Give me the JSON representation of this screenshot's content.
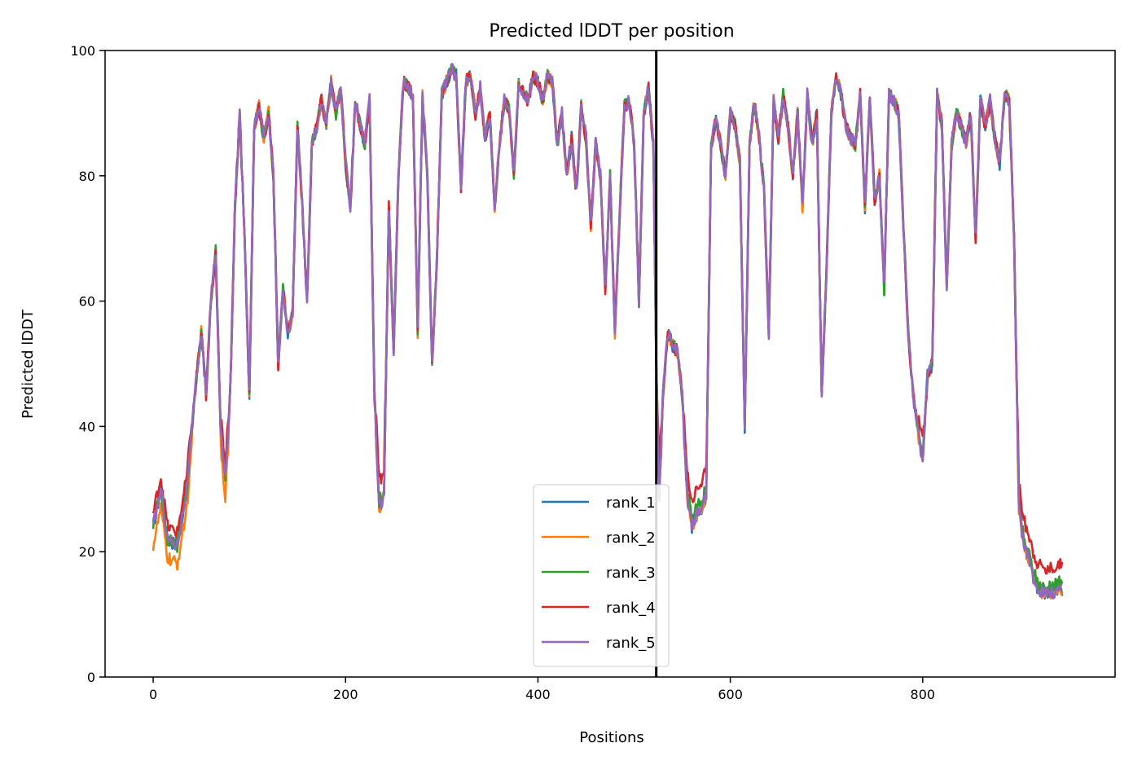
{
  "chart_data": {
    "type": "line",
    "title": "Predicted lDDT per position",
    "xlabel": "Positions",
    "ylabel": "Predicted lDDT",
    "xlim": [
      -50,
      1000
    ],
    "ylim": [
      0,
      100
    ],
    "xticks": [
      0,
      200,
      400,
      600,
      800
    ],
    "yticks": [
      0,
      20,
      40,
      60,
      80,
      100
    ],
    "grid": false,
    "legend_position": "bottom-center",
    "chain_break": 523,
    "keypoints": {
      "x": [
        0,
        8,
        15,
        25,
        35,
        45,
        50,
        55,
        60,
        65,
        70,
        75,
        80,
        85,
        90,
        95,
        100,
        105,
        110,
        115,
        120,
        125,
        130,
        135,
        140,
        145,
        150,
        155,
        160,
        165,
        170,
        175,
        180,
        185,
        190,
        195,
        200,
        205,
        210,
        215,
        220,
        225,
        230,
        235,
        240,
        245,
        250,
        255,
        260,
        265,
        270,
        275,
        280,
        285,
        290,
        295,
        300,
        305,
        310,
        315,
        320,
        325,
        330,
        335,
        340,
        345,
        350,
        355,
        360,
        365,
        370,
        375,
        380,
        385,
        390,
        395,
        400,
        405,
        410,
        415,
        420,
        425,
        430,
        435,
        440,
        445,
        450,
        455,
        460,
        465,
        470,
        475,
        480,
        485,
        490,
        495,
        500,
        505,
        510,
        515,
        520,
        523,
        526,
        530,
        535,
        540,
        545,
        550,
        555,
        560,
        565,
        570,
        575,
        580,
        585,
        590,
        595,
        600,
        605,
        610,
        615,
        620,
        625,
        630,
        635,
        640,
        645,
        650,
        655,
        660,
        665,
        670,
        675,
        680,
        685,
        690,
        695,
        700,
        705,
        710,
        715,
        720,
        725,
        730,
        735,
        740,
        745,
        750,
        755,
        760,
        765,
        770,
        775,
        780,
        785,
        790,
        795,
        800,
        805,
        810,
        815,
        820,
        825,
        830,
        835,
        840,
        845,
        850,
        855,
        860,
        865,
        870,
        875,
        880,
        885,
        890,
        895,
        900,
        905,
        910,
        915,
        920,
        930,
        940,
        945
      ],
      "y": [
        24,
        30,
        22,
        21,
        30,
        48,
        55,
        45,
        60,
        68,
        40,
        32,
        45,
        75,
        90,
        70,
        45,
        88,
        91,
        86,
        90,
        80,
        50,
        62,
        55,
        58,
        88,
        75,
        60,
        85,
        88,
        92,
        88,
        95,
        90,
        94,
        82,
        75,
        92,
        88,
        85,
        92,
        45,
        28,
        30,
        75,
        52,
        80,
        95,
        94,
        93,
        55,
        93,
        80,
        50,
        67,
        93,
        95,
        97,
        96,
        78,
        95,
        96,
        90,
        94,
        86,
        90,
        75,
        85,
        92,
        91,
        80,
        95,
        93,
        92,
        96,
        95,
        92,
        96,
        95,
        85,
        90,
        80,
        86,
        77,
        91,
        86,
        72,
        85,
        80,
        62,
        80,
        55,
        74,
        91,
        92,
        85,
        60,
        90,
        94,
        85,
        50,
        30,
        45,
        55,
        53,
        52,
        45,
        30,
        25,
        27,
        28,
        30,
        85,
        89,
        85,
        80,
        90,
        88,
        82,
        40,
        85,
        92,
        86,
        78,
        55,
        92,
        86,
        93,
        88,
        80,
        90,
        75,
        93,
        85,
        90,
        45,
        65,
        90,
        96,
        93,
        88,
        86,
        85,
        93,
        75,
        93,
        76,
        80,
        62,
        93,
        92,
        90,
        72,
        55,
        45,
        40,
        35,
        48,
        50,
        93,
        88,
        62,
        85,
        90,
        88,
        85,
        90,
        70,
        92,
        88,
        92,
        86,
        82,
        93,
        92,
        70,
        28,
        22,
        20,
        17,
        15,
        14,
        15,
        15
      ],
      "offsets": {
        "rank_1": [
          0,
          -1
        ],
        "rank_2": [
          -3,
          -1
        ],
        "rank_3": [
          0,
          0
        ],
        "rank_4": [
          2,
          3
        ],
        "rank_5": [
          0,
          -1
        ]
      }
    },
    "series": [
      {
        "name": "rank_1",
        "color": "#1f77b4"
      },
      {
        "name": "rank_2",
        "color": "#ff7f0e"
      },
      {
        "name": "rank_3",
        "color": "#2ca02c"
      },
      {
        "name": "rank_4",
        "color": "#d62728"
      },
      {
        "name": "rank_5",
        "color": "#9467bd"
      }
    ]
  }
}
